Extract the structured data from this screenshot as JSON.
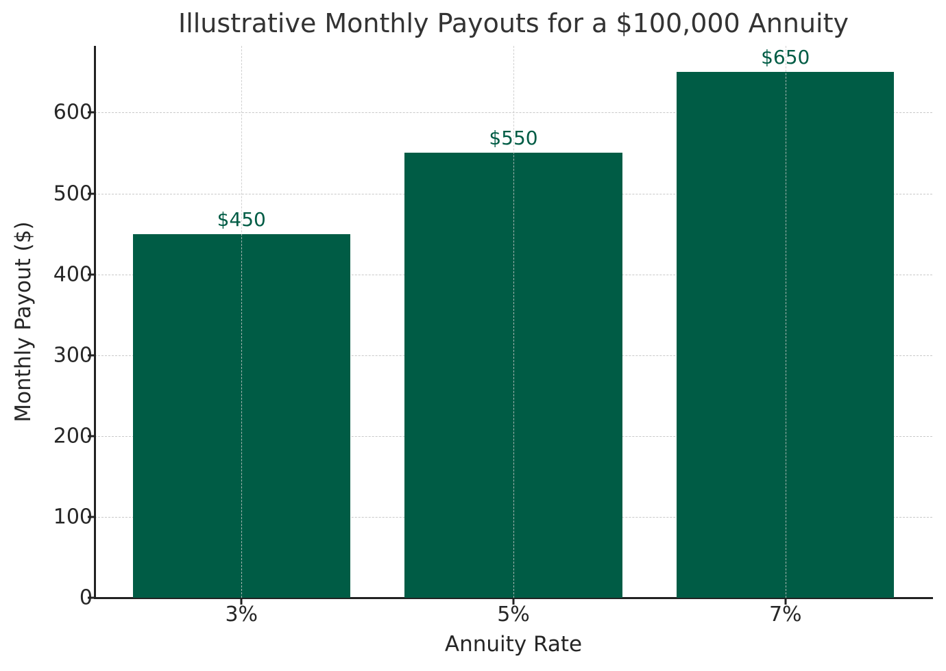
{
  "chart_data": {
    "type": "bar",
    "title": "Illustrative Monthly Payouts for a $100,000 Annuity",
    "xlabel": "Annuity Rate",
    "ylabel": "Monthly Payout ($)",
    "categories": [
      "3%",
      "5%",
      "7%"
    ],
    "values": [
      450,
      550,
      650
    ],
    "data_labels": [
      "$450",
      "$550",
      "$650"
    ],
    "ylim": [
      0,
      682.5
    ],
    "yticks": [
      0,
      100,
      200,
      300,
      400,
      500,
      600
    ],
    "ytick_labels": [
      "0",
      "100",
      "200",
      "300",
      "400",
      "500",
      "600"
    ],
    "grid": true,
    "grid_style": "dashed",
    "legend": null,
    "bar_color": "#005c45",
    "label_color": "#005c45"
  }
}
